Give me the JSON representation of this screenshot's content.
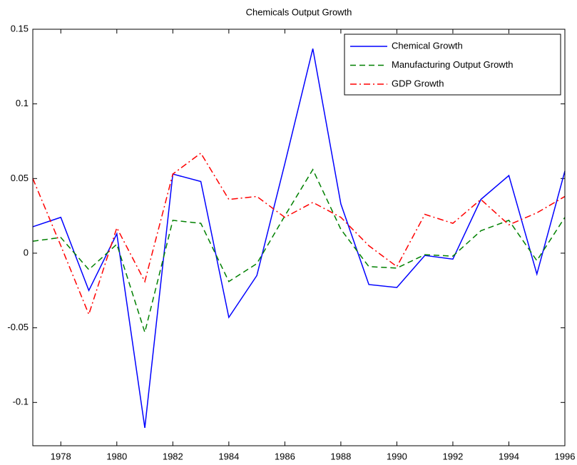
{
  "chart_data": {
    "type": "line",
    "title": "Chemicals Output Growth",
    "x": [
      1977,
      1978,
      1979,
      1980,
      1981,
      1982,
      1983,
      1984,
      1985,
      1986,
      1987,
      1988,
      1989,
      1990,
      1991,
      1992,
      1993,
      1994,
      1995,
      1996
    ],
    "series": [
      {
        "name": "Chemical Growth",
        "color": "#0000ff",
        "dash": "solid",
        "values": [
          0.0177,
          0.024,
          -0.025,
          0.013,
          -0.117,
          0.053,
          0.048,
          -0.043,
          -0.015,
          0.06,
          0.137,
          0.033,
          -0.021,
          -0.023,
          -0.0015,
          -0.004,
          0.036,
          0.052,
          -0.014,
          0.055
        ]
      },
      {
        "name": "Manufacturing Output Growth",
        "color": "#008000",
        "dash": "dashed",
        "values": [
          0.008,
          0.0105,
          -0.011,
          0.006,
          -0.053,
          0.022,
          0.02,
          -0.019,
          -0.007,
          0.025,
          0.056,
          0.016,
          -0.009,
          -0.01,
          -0.001,
          -0.002,
          0.015,
          0.022,
          -0.005,
          0.024
        ]
      },
      {
        "name": "GDP Growth",
        "color": "#ff0000",
        "dash": "dashdot",
        "values": [
          0.05,
          0.005,
          -0.041,
          0.017,
          -0.019,
          0.053,
          0.067,
          0.036,
          0.038,
          0.024,
          0.034,
          0.024,
          0.005,
          -0.009,
          0.026,
          0.02,
          0.036,
          0.019,
          0.027,
          0.038
        ]
      }
    ],
    "xlim": [
      1977,
      1996
    ],
    "xticks": [
      1978,
      1980,
      1982,
      1984,
      1986,
      1988,
      1990,
      1992,
      1994,
      1996
    ],
    "ylim": [
      -0.129,
      0.15
    ],
    "yticks": [
      -0.1,
      -0.05,
      0,
      0.05,
      0.1,
      0.15
    ],
    "grid": false,
    "legend": "top-right"
  }
}
